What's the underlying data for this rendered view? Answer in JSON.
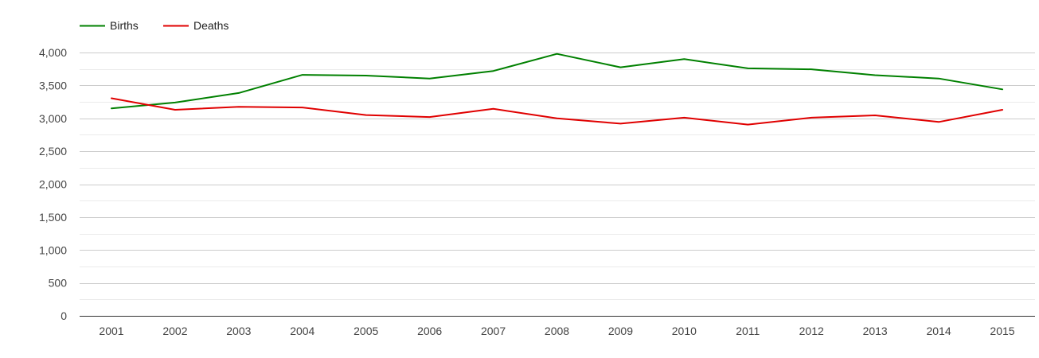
{
  "chart_data": {
    "type": "line",
    "title": "",
    "xlabel": "",
    "ylabel": "",
    "x": [
      "2001",
      "2002",
      "2003",
      "2004",
      "2005",
      "2006",
      "2007",
      "2008",
      "2009",
      "2010",
      "2011",
      "2012",
      "2013",
      "2014",
      "2015"
    ],
    "series": [
      {
        "name": "Births",
        "color": "#008000",
        "values": [
          3150,
          3240,
          3385,
          3660,
          3650,
          3605,
          3720,
          3980,
          3775,
          3900,
          3760,
          3745,
          3655,
          3605,
          3440
        ]
      },
      {
        "name": "Deaths",
        "color": "#e00000",
        "values": [
          3305,
          3130,
          3175,
          3165,
          3050,
          3020,
          3145,
          3000,
          2920,
          3010,
          2905,
          3010,
          3045,
          2945,
          3130
        ]
      }
    ],
    "ylim": [
      0,
      4000
    ],
    "yticks": [
      0,
      500,
      1000,
      1500,
      2000,
      2500,
      3000,
      3500,
      4000
    ],
    "ytick_labels": [
      "0",
      "500",
      "1,000",
      "1,500",
      "2,000",
      "2,500",
      "3,000",
      "3,500",
      "4,000"
    ],
    "grid": true,
    "minor_grid": true,
    "legend_position": "top-left"
  }
}
